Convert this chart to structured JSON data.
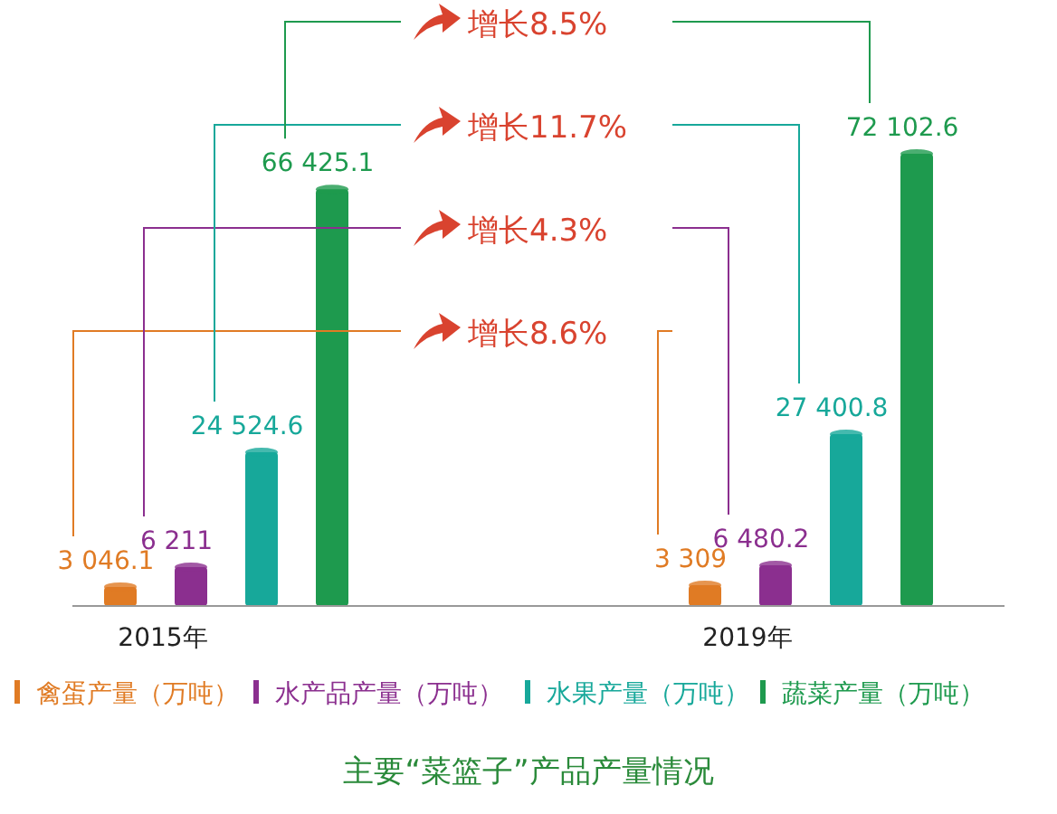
{
  "chart_data": {
    "type": "bar",
    "title": "主要“菜篮子”产品产量情况",
    "categories": [
      "2015年",
      "2019年"
    ],
    "series": [
      {
        "name": "禽蛋产量（万吨）",
        "color": "#e07b24",
        "values": [
          3046.1,
          3309
        ],
        "value_labels": [
          "3 046.1",
          "3 309"
        ]
      },
      {
        "name": "水产品产量（万吨）",
        "color": "#8b2f8f",
        "values": [
          6211,
          6480.2
        ],
        "value_labels": [
          "6 211",
          "6 480.2"
        ]
      },
      {
        "name": "水果产量（万吨）",
        "color": "#17a89a",
        "values": [
          24524.6,
          27400.8
        ],
        "value_labels": [
          "24 524.6",
          "27 400.8"
        ]
      },
      {
        "name": "蔬菜产量（万吨）",
        "color": "#1e9a4e",
        "values": [
          66425.1,
          72102.6
        ],
        "value_labels": [
          "66 425.1",
          "72 102.6"
        ]
      }
    ],
    "annotations": [
      "增长8.6%",
      "增长4.3%",
      "增长11.7%",
      "增长8.5%"
    ],
    "legend": "bottom"
  }
}
